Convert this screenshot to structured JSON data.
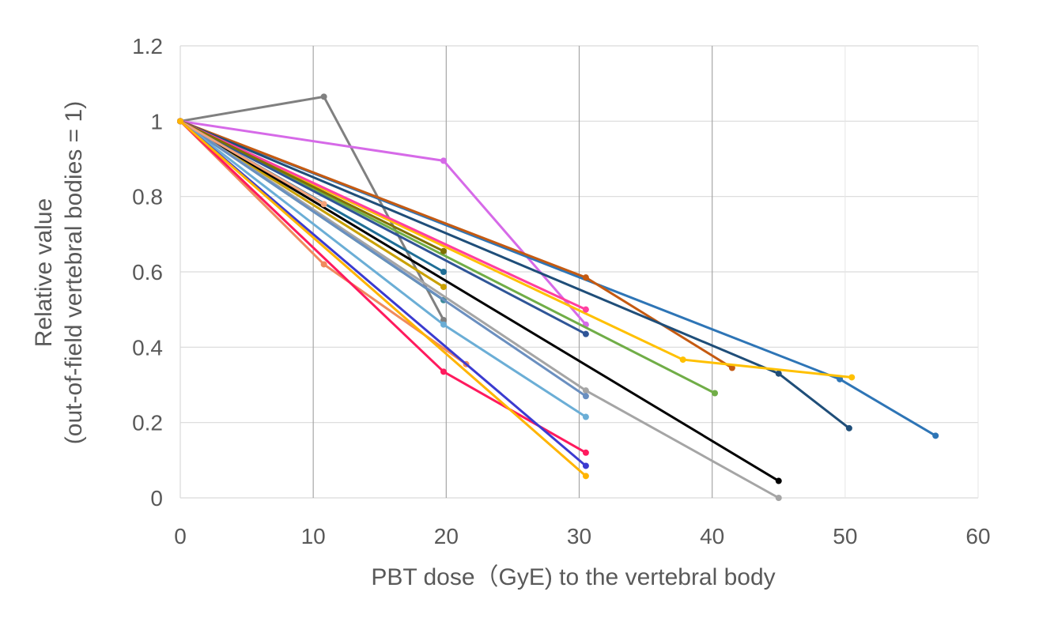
{
  "chart_data": {
    "type": "line",
    "title": "",
    "xlabel": "PBT dose（GyE) to the vertebral body",
    "ylabel": [
      "Relative value",
      "(out-of-field vertebral bodies = 1)"
    ],
    "xlim": [
      0,
      60
    ],
    "ylim": [
      0,
      1.2
    ],
    "xticks": [
      "0",
      "10",
      "20",
      "30",
      "40",
      "50",
      "60"
    ],
    "yticks": [
      "0",
      "0.2",
      "0.4",
      "0.6",
      "0.8",
      "1",
      "1.2"
    ],
    "grid": true,
    "legend": "none",
    "series": [
      {
        "name": "s1",
        "color": "#808080",
        "points": [
          [
            0,
            1
          ],
          [
            10.8,
            1.065
          ],
          [
            19.8,
            0.472
          ]
        ]
      },
      {
        "name": "s2",
        "color": "#d66ae8",
        "points": [
          [
            0,
            1
          ],
          [
            19.8,
            0.895
          ],
          [
            30.5,
            0.46
          ]
        ]
      },
      {
        "name": "s3",
        "color": "#2e75b6",
        "points": [
          [
            0,
            1
          ],
          [
            49.6,
            0.315
          ],
          [
            56.8,
            0.165
          ]
        ]
      },
      {
        "name": "s4",
        "color": "#c55a11",
        "points": [
          [
            0,
            1
          ],
          [
            30.5,
            0.585
          ],
          [
            41.5,
            0.345
          ]
        ]
      },
      {
        "name": "s5",
        "color": "#1f4e79",
        "points": [
          [
            0,
            1
          ],
          [
            45,
            0.33
          ],
          [
            50.3,
            0.185
          ]
        ]
      },
      {
        "name": "s6",
        "color": "#ffc000",
        "points": [
          [
            0,
            1
          ],
          [
            37.8,
            0.367
          ],
          [
            50.5,
            0.32
          ]
        ]
      },
      {
        "name": "s7",
        "color": "#ff3fa0",
        "points": [
          [
            0,
            1
          ],
          [
            30.5,
            0.5
          ]
        ]
      },
      {
        "name": "s8",
        "color": "#70ad47",
        "points": [
          [
            0,
            1
          ],
          [
            40.2,
            0.278
          ]
        ]
      },
      {
        "name": "s9",
        "color": "#2f5597",
        "points": [
          [
            0,
            1
          ],
          [
            30.5,
            0.435
          ]
        ]
      },
      {
        "name": "s10",
        "color": "#7f7000",
        "points": [
          [
            0,
            1
          ],
          [
            19.8,
            0.655
          ]
        ]
      },
      {
        "name": "s11",
        "color": "#1f6e96",
        "points": [
          [
            0,
            1
          ],
          [
            19.8,
            0.6
          ]
        ]
      },
      {
        "name": "s12",
        "color": "#c9a000",
        "points": [
          [
            0,
            1
          ],
          [
            19.8,
            0.56
          ]
        ]
      },
      {
        "name": "s13",
        "color": "#3a8a99",
        "points": [
          [
            0,
            1
          ],
          [
            19.8,
            0.525
          ]
        ]
      },
      {
        "name": "s14",
        "color": "#000000",
        "points": [
          [
            0,
            1
          ],
          [
            45,
            0.045
          ]
        ]
      },
      {
        "name": "s15",
        "color": "#a5a5a5",
        "points": [
          [
            0,
            1
          ],
          [
            30.5,
            0.285
          ],
          [
            45,
            0
          ]
        ]
      },
      {
        "name": "s16",
        "color": "#6a8fc0",
        "points": [
          [
            0,
            1
          ],
          [
            30.5,
            0.27
          ]
        ]
      },
      {
        "name": "s17",
        "color": "#6baed6",
        "points": [
          [
            0,
            1
          ],
          [
            19.8,
            0.46
          ],
          [
            30.5,
            0.215
          ]
        ]
      },
      {
        "name": "s18",
        "color": "#f4a27a",
        "points": [
          [
            0,
            1
          ],
          [
            10.8,
            0.78
          ]
        ]
      },
      {
        "name": "s19",
        "color": "#f08a5d",
        "points": [
          [
            0,
            1
          ],
          [
            10.8,
            0.62
          ],
          [
            21.5,
            0.355
          ]
        ]
      },
      {
        "name": "s20",
        "color": "#ff1a5e",
        "points": [
          [
            0,
            1
          ],
          [
            19.8,
            0.335
          ],
          [
            30.5,
            0.12
          ]
        ]
      },
      {
        "name": "s21",
        "color": "#3b3bd0",
        "points": [
          [
            0,
            1
          ],
          [
            30.5,
            0.085
          ]
        ]
      },
      {
        "name": "s22",
        "color": "#ffb400",
        "points": [
          [
            0,
            1
          ],
          [
            30.5,
            0.058
          ]
        ]
      }
    ]
  }
}
